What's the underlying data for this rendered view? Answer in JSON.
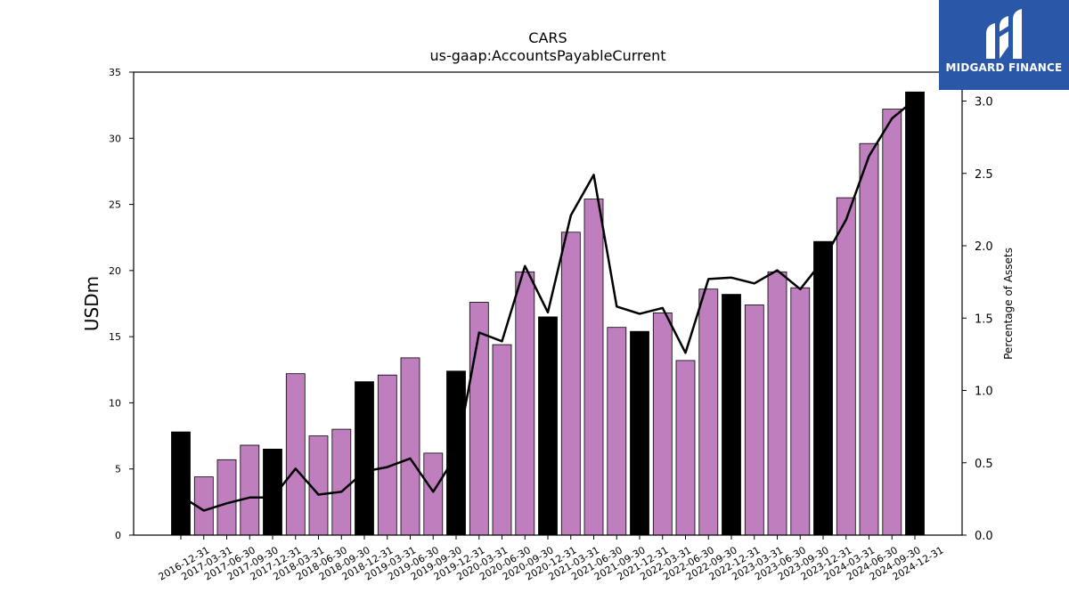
{
  "chart_data": {
    "type": "bar",
    "title": "CARS",
    "subtitle": "us-gaap:AccountsPayableCurrent",
    "ylabel": "USDm",
    "y2label": "Percentage of Assets",
    "ylim": [
      0,
      35
    ],
    "y2lim": [
      0,
      3.2
    ],
    "yticks": [
      0,
      5,
      10,
      15,
      20,
      25,
      30,
      35
    ],
    "y2ticks": [
      0.0,
      0.5,
      1.0,
      1.5,
      2.0,
      2.5,
      3.0
    ],
    "categories": [
      "2016-12-31",
      "2017-03-31",
      "2017-06-30",
      "2017-09-30",
      "2017-12-31",
      "2018-03-31",
      "2018-06-30",
      "2018-09-30",
      "2018-12-31",
      "2019-03-31",
      "2019-06-30",
      "2019-09-30",
      "2019-12-31",
      "2020-03-31",
      "2020-06-30",
      "2020-09-30",
      "2020-12-31",
      "2021-03-31",
      "2021-06-30",
      "2021-09-30",
      "2021-12-31",
      "2022-03-31",
      "2022-06-30",
      "2022-09-30",
      "2022-12-31",
      "2023-03-31",
      "2023-06-30",
      "2023-09-30",
      "2023-12-31",
      "2024-03-31",
      "2024-06-30",
      "2024-09-30",
      "2024-12-31"
    ],
    "values": [
      7.8,
      4.4,
      5.7,
      6.8,
      6.5,
      12.2,
      7.5,
      8.0,
      11.6,
      12.1,
      13.4,
      6.2,
      12.4,
      17.6,
      14.4,
      19.9,
      16.5,
      22.9,
      25.4,
      15.7,
      15.4,
      16.8,
      13.2,
      18.6,
      18.2,
      17.4,
      19.9,
      18.7,
      22.2,
      25.5,
      29.6,
      32.2,
      33.5
    ],
    "annual": [
      true,
      false,
      false,
      false,
      true,
      false,
      false,
      false,
      true,
      false,
      false,
      false,
      true,
      false,
      false,
      false,
      true,
      false,
      false,
      false,
      true,
      false,
      false,
      false,
      true,
      false,
      false,
      false,
      true,
      false,
      false,
      false,
      true
    ],
    "line_values": [
      0.27,
      0.17,
      0.22,
      0.26,
      0.26,
      0.46,
      0.28,
      0.3,
      0.44,
      0.47,
      0.53,
      0.3,
      0.55,
      1.4,
      1.34,
      1.86,
      1.54,
      2.21,
      2.49,
      1.58,
      1.53,
      1.57,
      1.26,
      1.77,
      1.78,
      1.74,
      1.83,
      1.7,
      1.9,
      2.18,
      2.62,
      2.88,
      3.01
    ],
    "colors": {
      "quarterly": "#bf7fbf",
      "annual": "#000000",
      "line": "#000000",
      "edge": "#000000"
    }
  },
  "branding": {
    "logo_text": "MIDGARD FINANCE"
  }
}
